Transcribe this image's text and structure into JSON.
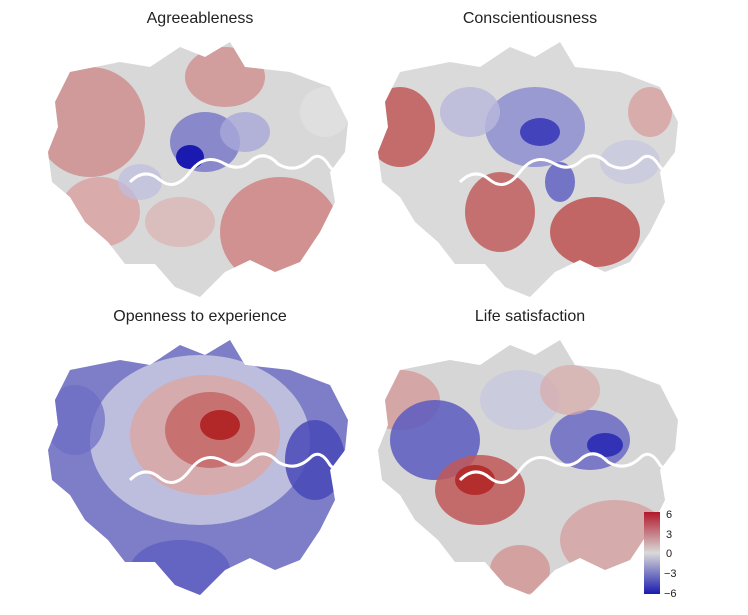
{
  "panels": [
    {
      "id": "agreeableness",
      "title": "Agreeableness"
    },
    {
      "id": "conscientiousness",
      "title": "Conscientiousness"
    },
    {
      "id": "openness",
      "title": "Openness to experience"
    },
    {
      "id": "life-satisfaction",
      "title": "Life satisfaction"
    }
  ],
  "legend": {
    "ticks": [
      "6",
      "3",
      "0",
      "−3",
      "−6"
    ],
    "colors": {
      "high": "#b2182b",
      "mid": "#d9d9d9",
      "low": "#1a1ab0"
    }
  },
  "river_color": "#ffffff"
}
